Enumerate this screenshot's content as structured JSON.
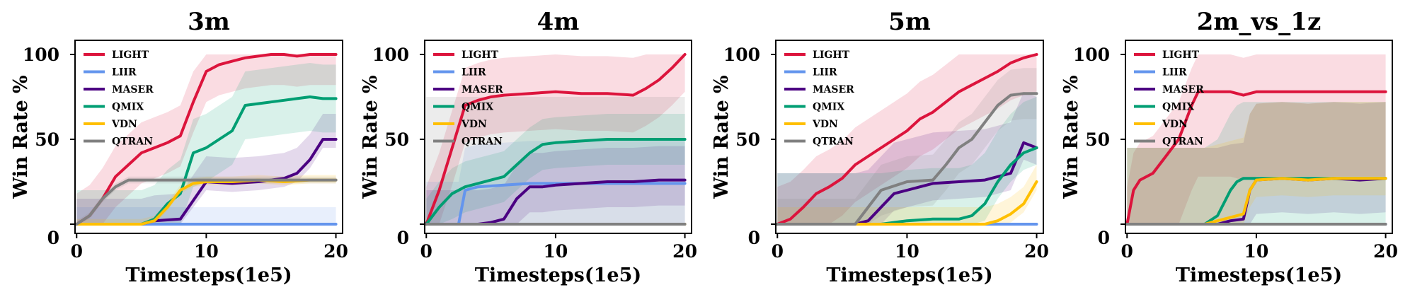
{
  "figure": {
    "ylabel": "Win Rate %",
    "xlabel": "Timesteps(1e5)"
  },
  "legend": [
    {
      "name": "LIGHT",
      "color": "#DC143C"
    },
    {
      "name": "LIIR",
      "color": "#6495ED"
    },
    {
      "name": "MASER",
      "color": "#4B0082"
    },
    {
      "name": "QMIX",
      "color": "#009E73"
    },
    {
      "name": "VDN",
      "color": "#FFBF00"
    },
    {
      "name": "QTRAN",
      "color": "#808080"
    }
  ],
  "chart_data": [
    {
      "type": "line",
      "title": "3m",
      "xlabel": "Timesteps(1e5)",
      "ylabel": "Win Rate %",
      "xlim": [
        0,
        20
      ],
      "ylim": [
        0,
        100
      ],
      "xticks": [
        "0",
        "10",
        "20"
      ],
      "yticks": [
        "0",
        "50",
        "100"
      ],
      "series": [
        {
          "name": "LIGHT",
          "x": [
            0,
            1,
            2,
            3,
            4,
            5,
            6,
            7,
            8,
            9,
            10,
            11,
            12,
            13,
            14,
            15,
            16,
            17,
            18,
            19,
            20
          ],
          "y": [
            0,
            5,
            15,
            28,
            35,
            42,
            45,
            48,
            52,
            72,
            90,
            94,
            96,
            98,
            99,
            100,
            100,
            99,
            100,
            100,
            100
          ],
          "band": [
            18,
            18
          ]
        },
        {
          "name": "LIIR",
          "x": [
            0,
            5,
            10,
            15,
            20
          ],
          "y": [
            0,
            0,
            0,
            0,
            0
          ],
          "band": [
            0,
            10
          ]
        },
        {
          "name": "MASER",
          "x": [
            0,
            5,
            6,
            8,
            10,
            12,
            14,
            16,
            17,
            18,
            19,
            20
          ],
          "y": [
            0,
            0,
            2,
            3,
            25,
            24,
            25,
            27,
            30,
            38,
            50,
            50
          ],
          "band": [
            5,
            15
          ]
        },
        {
          "name": "QMIX",
          "x": [
            0,
            5,
            6,
            7,
            8,
            9,
            10,
            11,
            12,
            13,
            14,
            15,
            16,
            17,
            18,
            19,
            20
          ],
          "y": [
            0,
            0,
            3,
            12,
            18,
            42,
            45,
            50,
            55,
            70,
            71,
            72,
            73,
            74,
            75,
            74,
            74
          ],
          "band": [
            20,
            20
          ]
        },
        {
          "name": "VDN",
          "x": [
            0,
            5,
            6,
            7,
            8,
            9,
            10,
            12,
            14,
            16,
            18,
            20
          ],
          "y": [
            0,
            0,
            2,
            10,
            20,
            24,
            25,
            25,
            26,
            25,
            26,
            26
          ],
          "band": [
            2,
            3
          ]
        },
        {
          "name": "QTRAN",
          "x": [
            0,
            1,
            2,
            3,
            4,
            5,
            10,
            15,
            20
          ],
          "y": [
            0,
            5,
            15,
            22,
            26,
            26,
            26,
            26,
            26
          ],
          "band": [
            2,
            2
          ]
        }
      ]
    },
    {
      "type": "line",
      "title": "4m",
      "xlabel": "Timesteps(1e5)",
      "ylabel": "Win Rate %",
      "xlim": [
        0,
        20
      ],
      "ylim": [
        0,
        100
      ],
      "xticks": [
        "0",
        "10",
        "20"
      ],
      "yticks": [
        "0",
        "50",
        "100"
      ],
      "series": [
        {
          "name": "LIGHT",
          "x": [
            0,
            1,
            2,
            3,
            4,
            5,
            6,
            8,
            10,
            12,
            14,
            16,
            17,
            18,
            19,
            20
          ],
          "y": [
            0,
            20,
            45,
            70,
            73,
            75,
            76,
            77,
            78,
            77,
            77,
            76,
            80,
            85,
            92,
            100
          ],
          "band": [
            22,
            22
          ]
        },
        {
          "name": "LIIR",
          "x": [
            0,
            2,
            2.5,
            3,
            4,
            6,
            8,
            10,
            12,
            14,
            16,
            18,
            20
          ],
          "y": [
            0,
            0,
            0,
            20,
            22,
            23,
            24,
            24,
            24,
            24,
            24,
            24,
            24
          ],
          "band": [
            25,
            25
          ]
        },
        {
          "name": "MASER",
          "x": [
            0,
            4,
            5,
            6,
            7,
            8,
            9,
            10,
            12,
            14,
            16,
            18,
            20
          ],
          "y": [
            0,
            0,
            1,
            3,
            15,
            22,
            22,
            23,
            24,
            25,
            25,
            26,
            26
          ],
          "band": [
            15,
            20
          ]
        },
        {
          "name": "QMIX",
          "x": [
            0,
            1,
            2,
            3,
            4,
            5,
            6,
            7,
            8,
            9,
            10,
            12,
            14,
            16,
            18,
            20
          ],
          "y": [
            0,
            10,
            18,
            22,
            24,
            26,
            28,
            35,
            42,
            47,
            48,
            49,
            50,
            50,
            50,
            50
          ],
          "band": [
            15,
            15
          ]
        },
        {
          "name": "VDN",
          "x": [
            0,
            5,
            10,
            15,
            20
          ],
          "y": [
            0,
            0,
            0,
            0,
            0
          ],
          "band": [
            0,
            0
          ]
        },
        {
          "name": "QTRAN",
          "x": [
            0,
            5,
            10,
            15,
            20
          ],
          "y": [
            0,
            0,
            0,
            0,
            0
          ],
          "band": [
            0,
            75
          ]
        }
      ]
    },
    {
      "type": "line",
      "title": "5m",
      "xlabel": "Timesteps(1e5)",
      "ylabel": "Win Rate %",
      "xlim": [
        0,
        20
      ],
      "ylim": [
        0,
        100
      ],
      "xticks": [
        "0",
        "10",
        "20"
      ],
      "yticks": [
        "0",
        "50",
        "100"
      ],
      "series": [
        {
          "name": "LIGHT",
          "x": [
            0,
            1,
            2,
            3,
            4,
            5,
            6,
            7,
            8,
            9,
            10,
            11,
            12,
            13,
            14,
            15,
            16,
            17,
            18,
            19,
            20
          ],
          "y": [
            0,
            3,
            10,
            18,
            22,
            27,
            35,
            40,
            45,
            50,
            55,
            62,
            66,
            72,
            78,
            82,
            86,
            90,
            95,
            98,
            100
          ],
          "band": [
            22,
            22
          ]
        },
        {
          "name": "LIIR",
          "x": [
            0,
            5,
            10,
            15,
            20
          ],
          "y": [
            0,
            0,
            0,
            0,
            0
          ],
          "band": [
            0,
            0
          ]
        },
        {
          "name": "MASER",
          "x": [
            0,
            6,
            7,
            8,
            9,
            10,
            11,
            12,
            14,
            16,
            18,
            19,
            20
          ],
          "y": [
            0,
            0,
            2,
            10,
            18,
            20,
            22,
            24,
            25,
            26,
            30,
            48,
            45
          ],
          "band": [
            10,
            30
          ]
        },
        {
          "name": "QMIX",
          "x": [
            0,
            8,
            10,
            12,
            14,
            15,
            16,
            17,
            18,
            19,
            20
          ],
          "y": [
            0,
            0,
            2,
            3,
            3,
            5,
            12,
            25,
            35,
            42,
            45
          ],
          "band": [
            10,
            30
          ]
        },
        {
          "name": "VDN",
          "x": [
            0,
            12,
            14,
            16,
            17,
            18,
            19,
            20
          ],
          "y": [
            0,
            0,
            0,
            0,
            2,
            6,
            12,
            25
          ],
          "band": [
            5,
            10
          ]
        },
        {
          "name": "QTRAN",
          "x": [
            0,
            6,
            7,
            8,
            10,
            12,
            13,
            14,
            15,
            16,
            17,
            18,
            19,
            20
          ],
          "y": [
            0,
            0,
            10,
            20,
            25,
            26,
            35,
            45,
            50,
            60,
            70,
            76,
            77,
            77
          ],
          "band": [
            15,
            15
          ]
        }
      ]
    },
    {
      "type": "line",
      "title": "2m_vs_1z",
      "xlabel": "Timesteps(1e5)",
      "ylabel": "Win Rate %",
      "xlim": [
        0,
        20
      ],
      "ylim": [
        0,
        100
      ],
      "xticks": [
        "0",
        "10",
        "20"
      ],
      "yticks": [
        "0",
        "50",
        "100"
      ],
      "series": [
        {
          "name": "LIGHT",
          "x": [
            0,
            0.5,
            1,
            2,
            3,
            4,
            5,
            5.5,
            6,
            8,
            9,
            10,
            12,
            14,
            16,
            18,
            20
          ],
          "y": [
            0,
            20,
            26,
            30,
            40,
            50,
            70,
            78,
            78,
            78,
            76,
            78,
            78,
            78,
            78,
            78,
            78
          ],
          "band": [
            50,
            22
          ]
        },
        {
          "name": "LIIR",
          "x": [
            0,
            5,
            10,
            15,
            20
          ],
          "y": [
            0,
            0,
            0,
            0,
            0
          ],
          "band": [
            0,
            0
          ]
        },
        {
          "name": "MASER",
          "x": [
            0,
            7,
            8,
            9,
            9.5,
            10,
            12,
            14,
            16,
            18,
            20
          ],
          "y": [
            0,
            0,
            2,
            3,
            20,
            26,
            27,
            26,
            27,
            26,
            27
          ],
          "band": [
            20,
            45
          ]
        },
        {
          "name": "QMIX",
          "x": [
            0,
            6,
            7,
            8,
            8.5,
            9,
            10,
            12,
            14,
            16,
            18,
            20
          ],
          "y": [
            0,
            0,
            5,
            20,
            25,
            27,
            27,
            27,
            27,
            27,
            27,
            27
          ],
          "band": [
            27,
            45
          ]
        },
        {
          "name": "VDN",
          "x": [
            0,
            6,
            7,
            8,
            9,
            9.5,
            10,
            12,
            14,
            16,
            18,
            20
          ],
          "y": [
            0,
            0,
            2,
            4,
            6,
            20,
            26,
            27,
            26,
            27,
            27,
            27
          ],
          "band": [
            10,
            45
          ]
        },
        {
          "name": "QTRAN",
          "x": [
            0,
            5,
            10,
            15,
            20
          ],
          "y": [
            0,
            0,
            0,
            0,
            0
          ],
          "band": [
            0,
            0
          ]
        }
      ]
    }
  ]
}
